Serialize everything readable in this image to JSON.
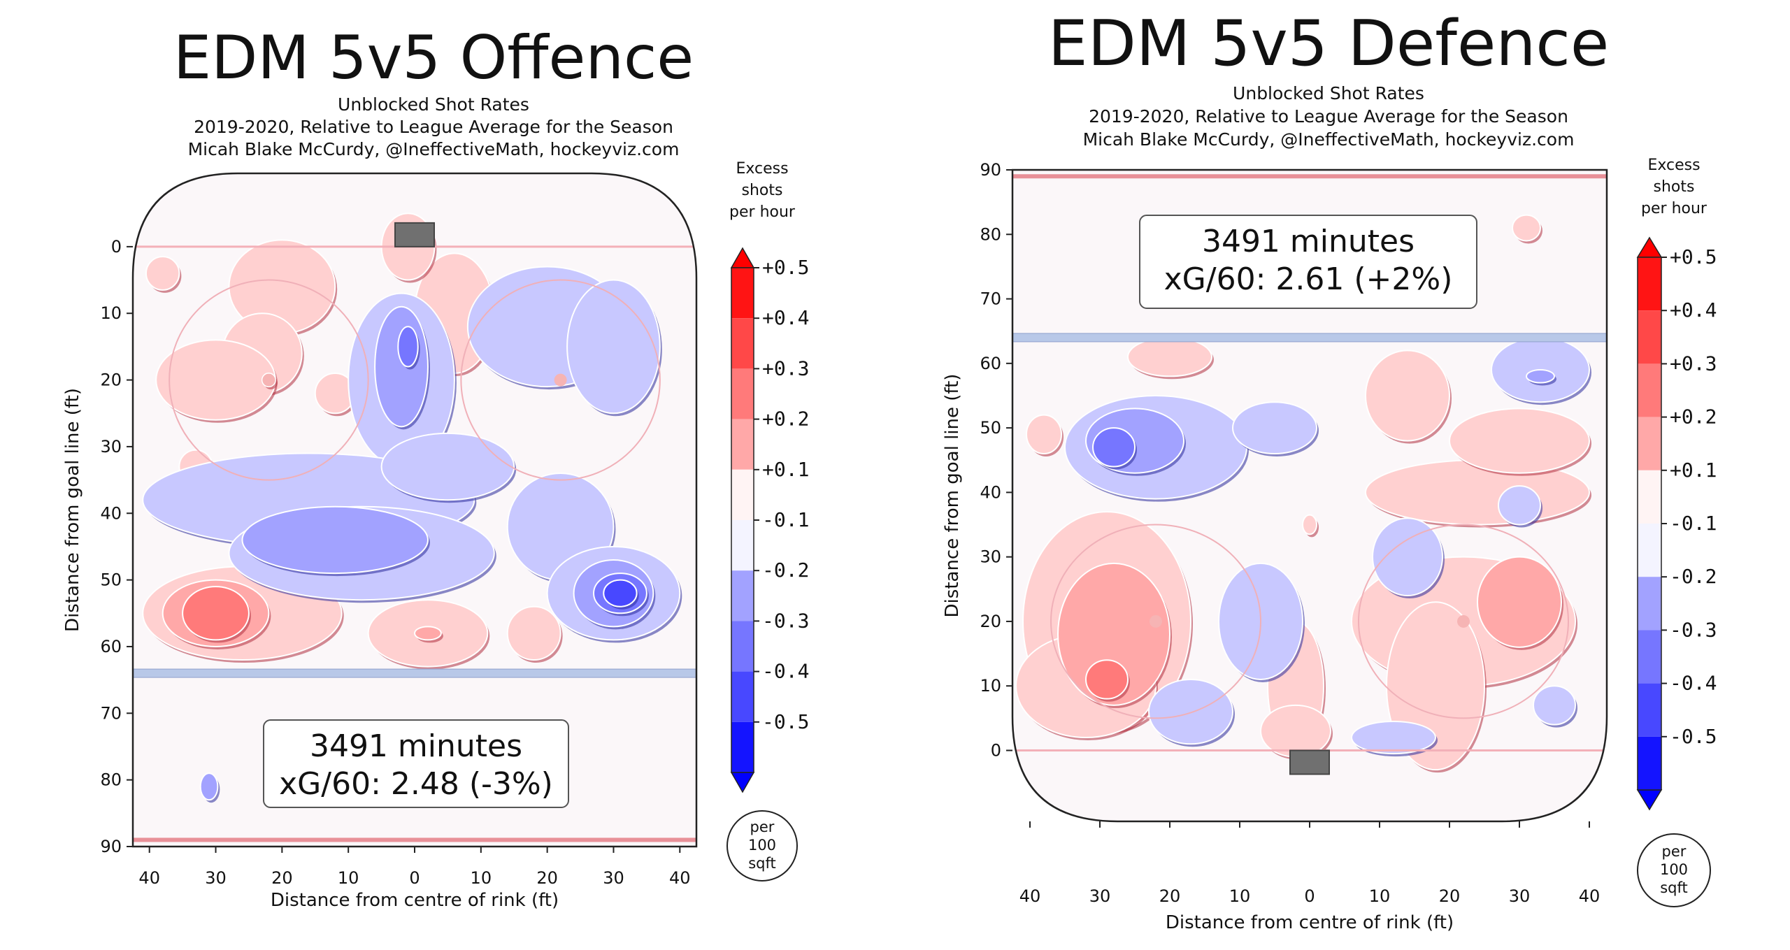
{
  "chart_data": [
    {
      "type": "heatmap",
      "title": "EDM 5v5 Offence",
      "subtitle_lines": [
        "Unblocked Shot Rates",
        "2019-2020, Relative to League Average for the Season",
        "Micah Blake McCurdy, @IneffectiveMath, hockeyviz.com"
      ],
      "xlabel": "Distance from centre of rink (ft)",
      "ylabel": "Distance from goal line (ft)",
      "xticks": [
        "40",
        "30",
        "20",
        "10",
        "0",
        "10",
        "20",
        "30",
        "40"
      ],
      "yticks": [
        "0",
        "10",
        "20",
        "30",
        "40",
        "50",
        "60",
        "70",
        "80",
        "90"
      ],
      "xlim": [
        -42.5,
        42.5
      ],
      "ylim": [
        -11,
        90
      ],
      "y_axis_inverted": true,
      "annotation": {
        "minutes": "3491 minutes",
        "xg": "xG/60: 2.48 (-3%)"
      },
      "colorbar": {
        "title_lines": [
          "Excess",
          "shots",
          "per hour"
        ],
        "labels": [
          "+0.5",
          "+0.4",
          "+0.3",
          "+0.2",
          "+0.1",
          "-0.1",
          "-0.2",
          "-0.3",
          "-0.4",
          "-0.5"
        ],
        "unit_lines": [
          "per",
          "100",
          "sqft"
        ]
      },
      "regions": [
        {
          "x": -20,
          "y": 6,
          "rx": 8,
          "ry": 7,
          "level": 0.15
        },
        {
          "x": -23,
          "y": 16,
          "rx": 6,
          "ry": 6,
          "level": 0.15
        },
        {
          "x": -30,
          "y": 20,
          "rx": 9,
          "ry": 6,
          "level": 0.15
        },
        {
          "x": -12,
          "y": 22,
          "rx": 3,
          "ry": 3,
          "level": 0.15
        },
        {
          "x": 6,
          "y": 10,
          "rx": 6,
          "ry": 9,
          "level": 0.15
        },
        {
          "x": -1,
          "y": 0,
          "rx": 4,
          "ry": 5,
          "level": 0.15
        },
        {
          "x": -38,
          "y": 4,
          "rx": 2.5,
          "ry": 2.5,
          "level": 0.15
        },
        {
          "x": -33,
          "y": 33,
          "rx": 2.5,
          "ry": 2.5,
          "level": 0.15
        },
        {
          "x": -22,
          "y": 20,
          "rx": 1,
          "ry": 1,
          "level": 0.15
        },
        {
          "x": -26,
          "y": 55,
          "rx": 15,
          "ry": 7,
          "level": 0.15
        },
        {
          "x": -30,
          "y": 55,
          "rx": 8,
          "ry": 5,
          "level": 0.25
        },
        {
          "x": -30,
          "y": 55,
          "rx": 5,
          "ry": 4,
          "level": 0.35
        },
        {
          "x": 2,
          "y": 58,
          "rx": 9,
          "ry": 5,
          "level": 0.15
        },
        {
          "x": 2,
          "y": 58,
          "rx": 2,
          "ry": 1,
          "level": 0.25
        },
        {
          "x": 18,
          "y": 58,
          "rx": 4,
          "ry": 4,
          "level": 0.15
        },
        {
          "x": 20,
          "y": 12,
          "rx": 12,
          "ry": 9,
          "level": -0.15
        },
        {
          "x": 30,
          "y": 15,
          "rx": 7,
          "ry": 10,
          "level": -0.15
        },
        {
          "x": -2,
          "y": 20,
          "rx": 8,
          "ry": 13,
          "level": -0.15
        },
        {
          "x": -2,
          "y": 18,
          "rx": 4,
          "ry": 9,
          "level": -0.25
        },
        {
          "x": -1,
          "y": 15,
          "rx": 1.5,
          "ry": 3,
          "level": -0.35
        },
        {
          "x": -16,
          "y": 38,
          "rx": 25,
          "ry": 7,
          "level": -0.15
        },
        {
          "x": -8,
          "y": 46,
          "rx": 20,
          "ry": 7,
          "level": -0.15
        },
        {
          "x": -12,
          "y": 44,
          "rx": 14,
          "ry": 5,
          "level": -0.25
        },
        {
          "x": 5,
          "y": 33,
          "rx": 10,
          "ry": 5,
          "level": -0.15
        },
        {
          "x": 22,
          "y": 42,
          "rx": 8,
          "ry": 8,
          "level": -0.15
        },
        {
          "x": 30,
          "y": 52,
          "rx": 10,
          "ry": 7,
          "level": -0.15
        },
        {
          "x": 30,
          "y": 52,
          "rx": 6,
          "ry": 5,
          "level": -0.25
        },
        {
          "x": 31,
          "y": 52,
          "rx": 4,
          "ry": 3,
          "level": -0.35
        },
        {
          "x": 31,
          "y": 52,
          "rx": 2.5,
          "ry": 2,
          "level": -0.45
        },
        {
          "x": -31,
          "y": 81,
          "rx": 1.3,
          "ry": 2,
          "level": -0.25
        }
      ],
      "faceoff_dots": [
        {
          "x": -22,
          "y": 20
        },
        {
          "x": 22,
          "y": 20
        }
      ],
      "faceoff_circles": [
        {
          "x": -22,
          "y": 20,
          "r": 15
        },
        {
          "x": 22,
          "y": 20,
          "r": 15
        }
      ],
      "goal_line_y": 0,
      "blue_line_y": 64,
      "red_line_y": 89
    },
    {
      "type": "heatmap",
      "title": "EDM 5v5 Defence",
      "subtitle_lines": [
        "Unblocked Shot Rates",
        "2019-2020, Relative to League Average for the Season",
        "Micah Blake McCurdy, @IneffectiveMath, hockeyviz.com"
      ],
      "xlabel": "Distance from centre of rink (ft)",
      "ylabel": "Distance from goal line (ft)",
      "xticks": [
        "40",
        "30",
        "20",
        "10",
        "0",
        "10",
        "20",
        "30",
        "40"
      ],
      "yticks": [
        "0",
        "10",
        "20",
        "30",
        "40",
        "50",
        "60",
        "70",
        "80",
        "90"
      ],
      "xlim": [
        -42.5,
        42.5
      ],
      "ylim": [
        -11,
        90
      ],
      "y_axis_inverted": false,
      "annotation": {
        "minutes": "3491 minutes",
        "xg": "xG/60: 2.61 (+2%)"
      },
      "colorbar": {
        "title_lines": [
          "Excess",
          "shots",
          "per hour"
        ],
        "labels": [
          "+0.5",
          "+0.4",
          "+0.3",
          "+0.2",
          "+0.1",
          "-0.1",
          "-0.2",
          "-0.3",
          "-0.4",
          "-0.5"
        ],
        "unit_lines": [
          "per",
          "100",
          "sqft"
        ]
      },
      "regions": [
        {
          "x": -29,
          "y": 20,
          "rx": 12,
          "ry": 17,
          "level": 0.15
        },
        {
          "x": -32,
          "y": 10,
          "rx": 10,
          "ry": 8,
          "level": 0.15
        },
        {
          "x": -28,
          "y": 18,
          "rx": 8,
          "ry": 11,
          "level": 0.25
        },
        {
          "x": -29,
          "y": 11,
          "rx": 3,
          "ry": 3,
          "level": 0.35
        },
        {
          "x": -2,
          "y": 10,
          "rx": 4,
          "ry": 10,
          "level": 0.15
        },
        {
          "x": -2,
          "y": 3,
          "rx": 5,
          "ry": 4,
          "level": 0.15
        },
        {
          "x": 22,
          "y": 20,
          "rx": 16,
          "ry": 10,
          "level": 0.15
        },
        {
          "x": 18,
          "y": 10,
          "rx": 7,
          "ry": 13,
          "level": 0.15
        },
        {
          "x": 30,
          "y": 23,
          "rx": 6,
          "ry": 7,
          "level": 0.25
        },
        {
          "x": 24,
          "y": 40,
          "rx": 16,
          "ry": 5,
          "level": 0.15
        },
        {
          "x": 14,
          "y": 55,
          "rx": 6,
          "ry": 7,
          "level": 0.15
        },
        {
          "x": 30,
          "y": 48,
          "rx": 10,
          "ry": 5,
          "level": 0.15
        },
        {
          "x": -20,
          "y": 61,
          "rx": 6,
          "ry": 3,
          "level": 0.15
        },
        {
          "x": -38,
          "y": 49,
          "rx": 2.5,
          "ry": 3,
          "level": 0.15
        },
        {
          "x": 31,
          "y": 81,
          "rx": 2,
          "ry": 2,
          "level": 0.15
        },
        {
          "x": 0,
          "y": 35,
          "rx": 1,
          "ry": 1.5,
          "level": 0.15
        },
        {
          "x": -22,
          "y": 47,
          "rx": 13,
          "ry": 8,
          "level": -0.15
        },
        {
          "x": -5,
          "y": 50,
          "rx": 6,
          "ry": 4,
          "level": -0.15
        },
        {
          "x": -25,
          "y": 48,
          "rx": 7,
          "ry": 5,
          "level": -0.25
        },
        {
          "x": -28,
          "y": 47,
          "rx": 3,
          "ry": 3,
          "level": -0.35
        },
        {
          "x": -7,
          "y": 20,
          "rx": 6,
          "ry": 9,
          "level": -0.15
        },
        {
          "x": -17,
          "y": 6,
          "rx": 6,
          "ry": 5,
          "level": -0.15
        },
        {
          "x": 12,
          "y": 2,
          "rx": 6,
          "ry": 2.5,
          "level": -0.15
        },
        {
          "x": 14,
          "y": 30,
          "rx": 5,
          "ry": 6,
          "level": -0.15
        },
        {
          "x": 30,
          "y": 38,
          "rx": 3,
          "ry": 3,
          "level": -0.15
        },
        {
          "x": 35,
          "y": 7,
          "rx": 3,
          "ry": 3,
          "level": -0.15
        },
        {
          "x": 33,
          "y": 59,
          "rx": 7,
          "ry": 5,
          "level": -0.15
        },
        {
          "x": 33,
          "y": 58,
          "rx": 2,
          "ry": 1,
          "level": -0.25
        }
      ],
      "faceoff_dots": [
        {
          "x": -22,
          "y": 20
        },
        {
          "x": 22,
          "y": 20
        }
      ],
      "faceoff_circles": [
        {
          "x": -22,
          "y": 20,
          "r": 15
        },
        {
          "x": 22,
          "y": 20,
          "r": 15
        }
      ],
      "goal_line_y": 0,
      "blue_line_y": 64,
      "red_line_y": 89
    }
  ]
}
